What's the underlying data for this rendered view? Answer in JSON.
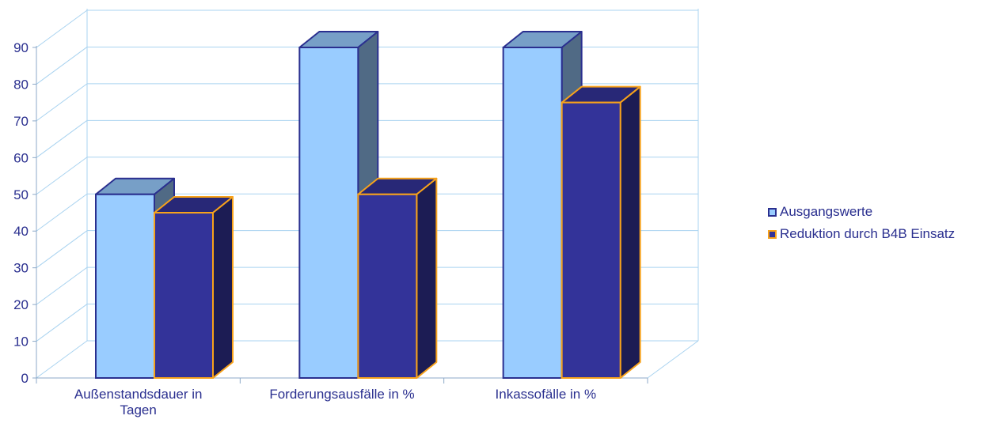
{
  "chart_data": {
    "type": "bar",
    "categories": [
      "Außenstandsdauer in Tagen",
      "Forderungsausfälle in %",
      "Inkassofälle in %"
    ],
    "category_lines": [
      [
        "Außenstandsdauer in",
        "Tagen"
      ],
      [
        "Forderungsausfälle in %"
      ],
      [
        "Inkassofälle in %"
      ]
    ],
    "series": [
      {
        "name": "Ausgangswerte",
        "values": [
          50,
          90,
          90
        ],
        "color": "#99ccff",
        "border": "#2a2f8f"
      },
      {
        "name": "Reduktion durch B4B Einsatz",
        "values": [
          45,
          50,
          75
        ],
        "color": "#333399",
        "border": "#f7a21b"
      }
    ],
    "ylim": [
      0,
      90
    ],
    "yticks": [
      0,
      10,
      20,
      30,
      40,
      50,
      60,
      70,
      80,
      90
    ],
    "grid": true,
    "legend": "right",
    "gridline_color": "#a9d3f0",
    "axis_color": "#8da9c8"
  }
}
